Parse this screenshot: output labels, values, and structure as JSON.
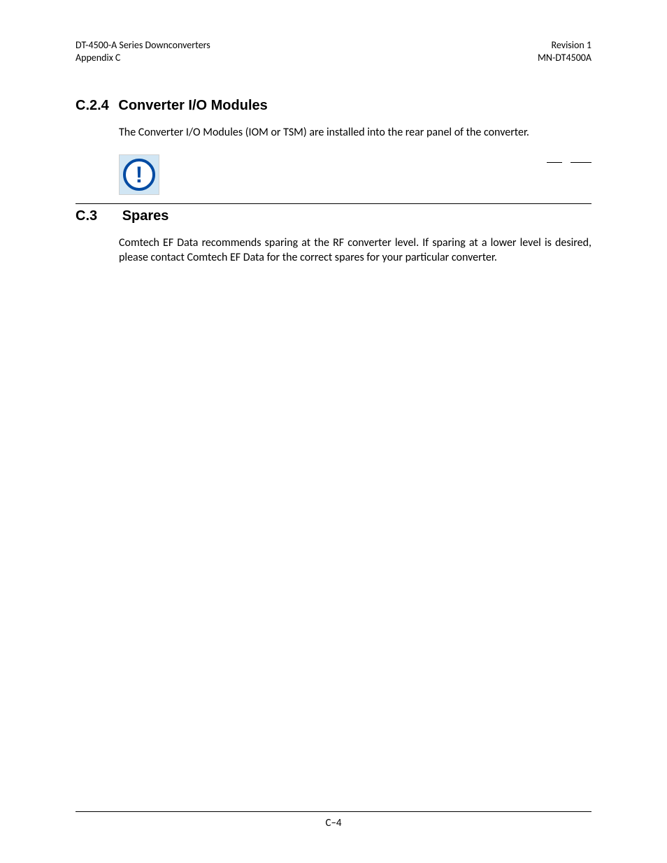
{
  "header": {
    "left_line1": "DT-4500-A Series Downconverters",
    "left_line2": "Appendix C",
    "right_line1": "Revision 1",
    "right_line2": "MN-DT4500A"
  },
  "sections": {
    "c24": {
      "number": "C.2.4",
      "title": "Converter I/O Modules",
      "body": "The Converter I/O Modules (IOM or TSM) are installed into the rear panel of the converter."
    },
    "c3": {
      "number": "C.3",
      "title": "Spares",
      "body": "Comtech EF Data recommends sparing at the RF converter level. If sparing at a lower level is desired, please contact Comtech EF Data for the correct spares for your particular converter."
    }
  },
  "icon": {
    "name": "important-exclamation-icon",
    "glyph": "!",
    "border_color": "#014ba3",
    "background_color": "#d1e6f4"
  },
  "footer": {
    "page_number": "C–4"
  },
  "colors": {
    "text": "#000000",
    "page_background": "#ffffff"
  }
}
